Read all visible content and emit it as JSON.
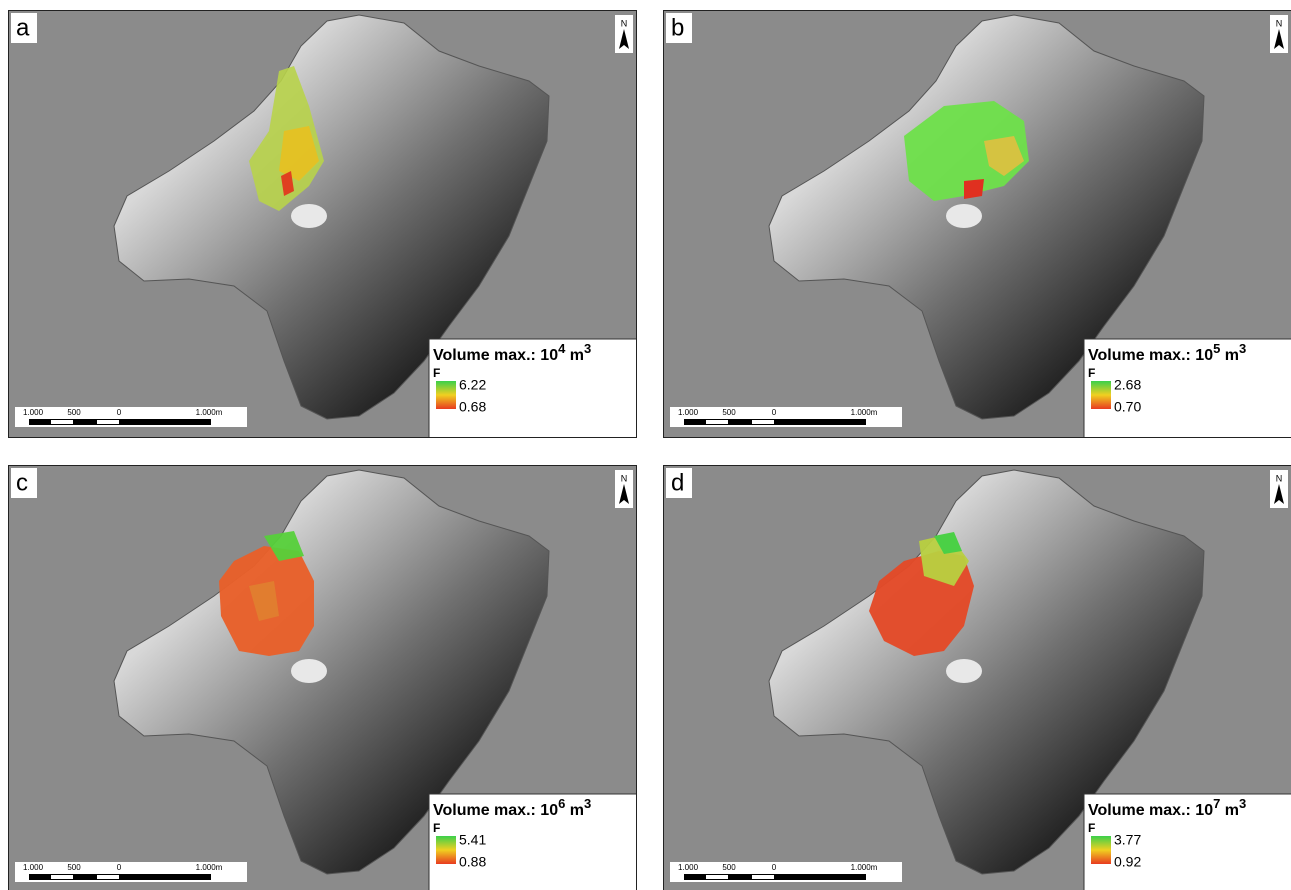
{
  "panels": [
    {
      "label": "a",
      "north": "N",
      "legend": {
        "title": "Volume max.: 10",
        "exponent": "4",
        "unit": " m",
        "unit_exponent": "3",
        "variable": "F",
        "max": "6.22",
        "min": "0.68"
      },
      "scale_labels": [
        "1.000",
        "500",
        "0",
        "1.000m"
      ]
    },
    {
      "label": "b",
      "north": "N",
      "legend": {
        "title": "Volume max.: 10",
        "exponent": "5",
        "unit": " m",
        "unit_exponent": "3",
        "variable": "F",
        "max": "2.68",
        "min": "0.70"
      },
      "scale_labels": [
        "1.000",
        "500",
        "0",
        "1.000m"
      ]
    },
    {
      "label": "c",
      "north": "N",
      "legend": {
        "title": "Volume max.: 10",
        "exponent": "6",
        "unit": " m",
        "unit_exponent": "3",
        "variable": "F",
        "max": "5.41",
        "min": "0.88"
      },
      "scale_labels": [
        "1.000",
        "500",
        "0",
        "1.000m"
      ]
    },
    {
      "label": "d",
      "north": "N",
      "legend": {
        "title": "Volume max.: 10",
        "exponent": "7",
        "unit": " m",
        "unit_exponent": "3",
        "variable": "F",
        "max": "3.77",
        "min": "0.92"
      },
      "scale_labels": [
        "1.000",
        "500",
        "0",
        "1.000m"
      ]
    }
  ]
}
